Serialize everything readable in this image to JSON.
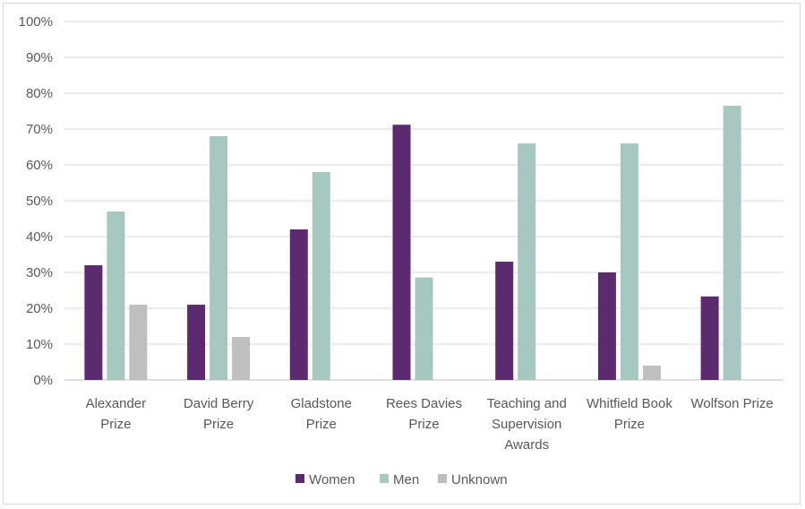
{
  "chart_data": {
    "type": "bar",
    "title": "",
    "xlabel": "",
    "ylabel": "",
    "ylim": [
      0,
      100
    ],
    "y_ticks": [
      "0%",
      "10%",
      "20%",
      "30%",
      "40%",
      "50%",
      "60%",
      "70%",
      "80%",
      "90%",
      "100%"
    ],
    "grid": true,
    "legend_position": "bottom",
    "categories": [
      [
        "Alexander",
        "Prize"
      ],
      [
        "David Berry",
        "Prize"
      ],
      [
        "Gladstone",
        "Prize"
      ],
      [
        "Rees Davies",
        "Prize"
      ],
      [
        "Teaching and",
        "Supervision",
        "Awards"
      ],
      [
        "Whitfield Book",
        "Prize"
      ],
      [
        "Wolfson Prize"
      ]
    ],
    "series": [
      {
        "name": "Women",
        "color": "#5c2a6e",
        "values": [
          32,
          21,
          42,
          71.2,
          33,
          30,
          23.3
        ]
      },
      {
        "name": "Men",
        "color": "#a6c8c0",
        "values": [
          47,
          68,
          58,
          28.6,
          66,
          66,
          76.5
        ]
      },
      {
        "name": "Unknown",
        "color": "#bfbfbf",
        "values": [
          21,
          12,
          0,
          0,
          0,
          4,
          0
        ]
      }
    ]
  }
}
